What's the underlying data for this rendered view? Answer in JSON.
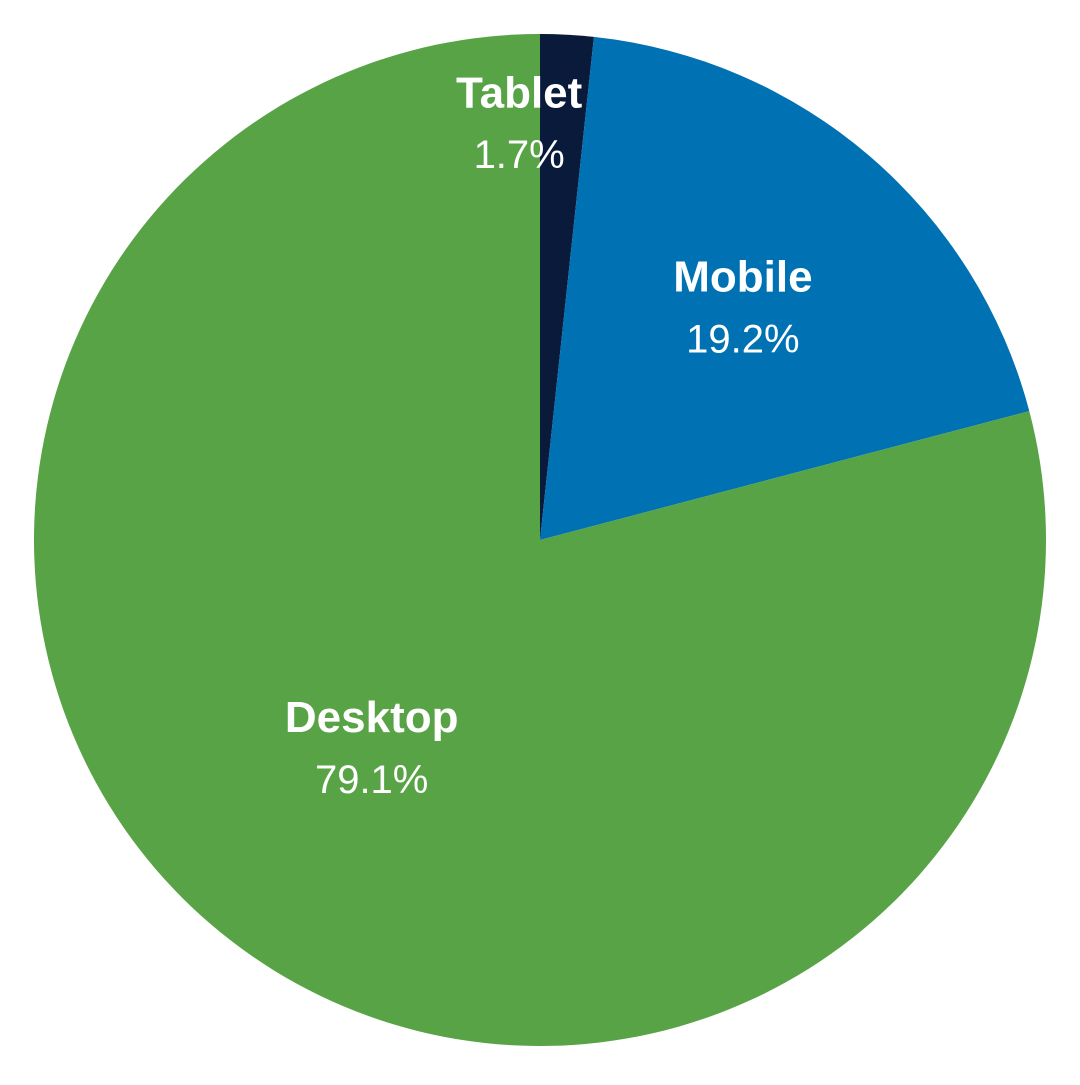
{
  "chart_data": {
    "type": "pie",
    "categories": [
      "Tablet",
      "Mobile",
      "Desktop"
    ],
    "values": [
      1.7,
      19.2,
      79.1
    ],
    "value_labels": [
      "1.7%",
      "19.2%",
      "79.1%"
    ],
    "colors": [
      "#0a1a3a",
      "#0072b4",
      "#57a345"
    ]
  }
}
